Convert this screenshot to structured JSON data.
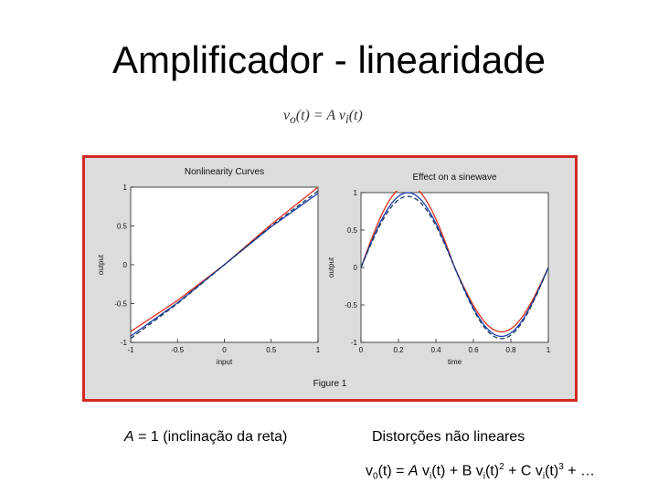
{
  "slide": {
    "title": "Amplificador - linearidade",
    "formula_top": {
      "lhs": "v",
      "lhs_sub": "o",
      "lhs_arg": "(t)",
      "eq": "=",
      "rhs": "A v",
      "rhs_sub": "i",
      "rhs_arg": "(t)"
    },
    "caption_left": {
      "var": "A",
      "text": " = 1 (inclinação da reta)"
    },
    "caption_right": "Distorções não lineares",
    "series_formula": {
      "p1": "v",
      "p1_sub": "0",
      "p2": "(t) = ",
      "p3": "A",
      "p4": " v",
      "p4_sub": "i",
      "p5": "(t) + B v",
      "p5_sub": "i",
      "p6": "(t)",
      "p6_sup": "2",
      "p7": " + C v",
      "p7_sub": "i",
      "p8": "(t)",
      "p8_sup": "3",
      "p9": " + …"
    },
    "figure_label": "Figure 1"
  },
  "colors": {
    "frame": "#d22a24",
    "red": "#e0301e",
    "blue": "#1a3fb0",
    "dash": "#16355e"
  },
  "chart_data": [
    {
      "type": "line",
      "title": "Nonlinearity Curves",
      "xlabel": "input",
      "ylabel": "output",
      "xlim": [
        -1,
        1
      ],
      "ylim": [
        -1,
        1
      ],
      "xticks": [
        "-1",
        "-0.5",
        "0",
        "0.5",
        "1"
      ],
      "yticks": [
        "1",
        "0.5",
        "0",
        "-0.5",
        "-1"
      ],
      "series": [
        {
          "color": "#e0301e",
          "style": "solid",
          "x": [
            -1,
            -0.5,
            0,
            0.5,
            1
          ],
          "y": [
            -0.86,
            -0.46,
            0,
            0.52,
            1.0
          ]
        },
        {
          "color": "#1a3fb0",
          "style": "solid",
          "x": [
            -1,
            -0.5,
            0,
            0.5,
            1
          ],
          "y": [
            -0.92,
            -0.49,
            0,
            0.49,
            0.92
          ]
        },
        {
          "color": "#16355e",
          "style": "dashed",
          "x": [
            -1,
            -0.5,
            0,
            0.5,
            1
          ],
          "y": [
            -0.95,
            -0.5,
            0,
            0.5,
            0.95
          ]
        }
      ]
    },
    {
      "type": "line",
      "title": "Effect on a sinewave",
      "xlabel": "time",
      "ylabel": "output",
      "xlim": [
        0,
        1
      ],
      "ylim": [
        -1,
        1
      ],
      "xticks": [
        "0",
        "0.2",
        "0.4",
        "0.6",
        "0.8",
        "1"
      ],
      "yticks": [
        "1",
        "0.5",
        "0",
        "-0.5",
        "-1"
      ],
      "series": [
        {
          "color": "#e0301e",
          "style": "solid",
          "amplitude": 1.1,
          "x": [
            0,
            0.25,
            0.5,
            0.75,
            1
          ],
          "y": [
            0,
            1.1,
            0,
            -0.86,
            0
          ]
        },
        {
          "color": "#1a3fb0",
          "style": "solid",
          "amplitude": 1.0,
          "x": [
            0,
            0.25,
            0.5,
            0.75,
            1
          ],
          "y": [
            0,
            1.0,
            0,
            -0.92,
            0
          ]
        },
        {
          "color": "#16355e",
          "style": "dashed",
          "amplitude": 0.95,
          "x": [
            0,
            0.25,
            0.5,
            0.75,
            1
          ],
          "y": [
            0,
            0.95,
            0,
            -0.95,
            0
          ]
        }
      ]
    }
  ]
}
